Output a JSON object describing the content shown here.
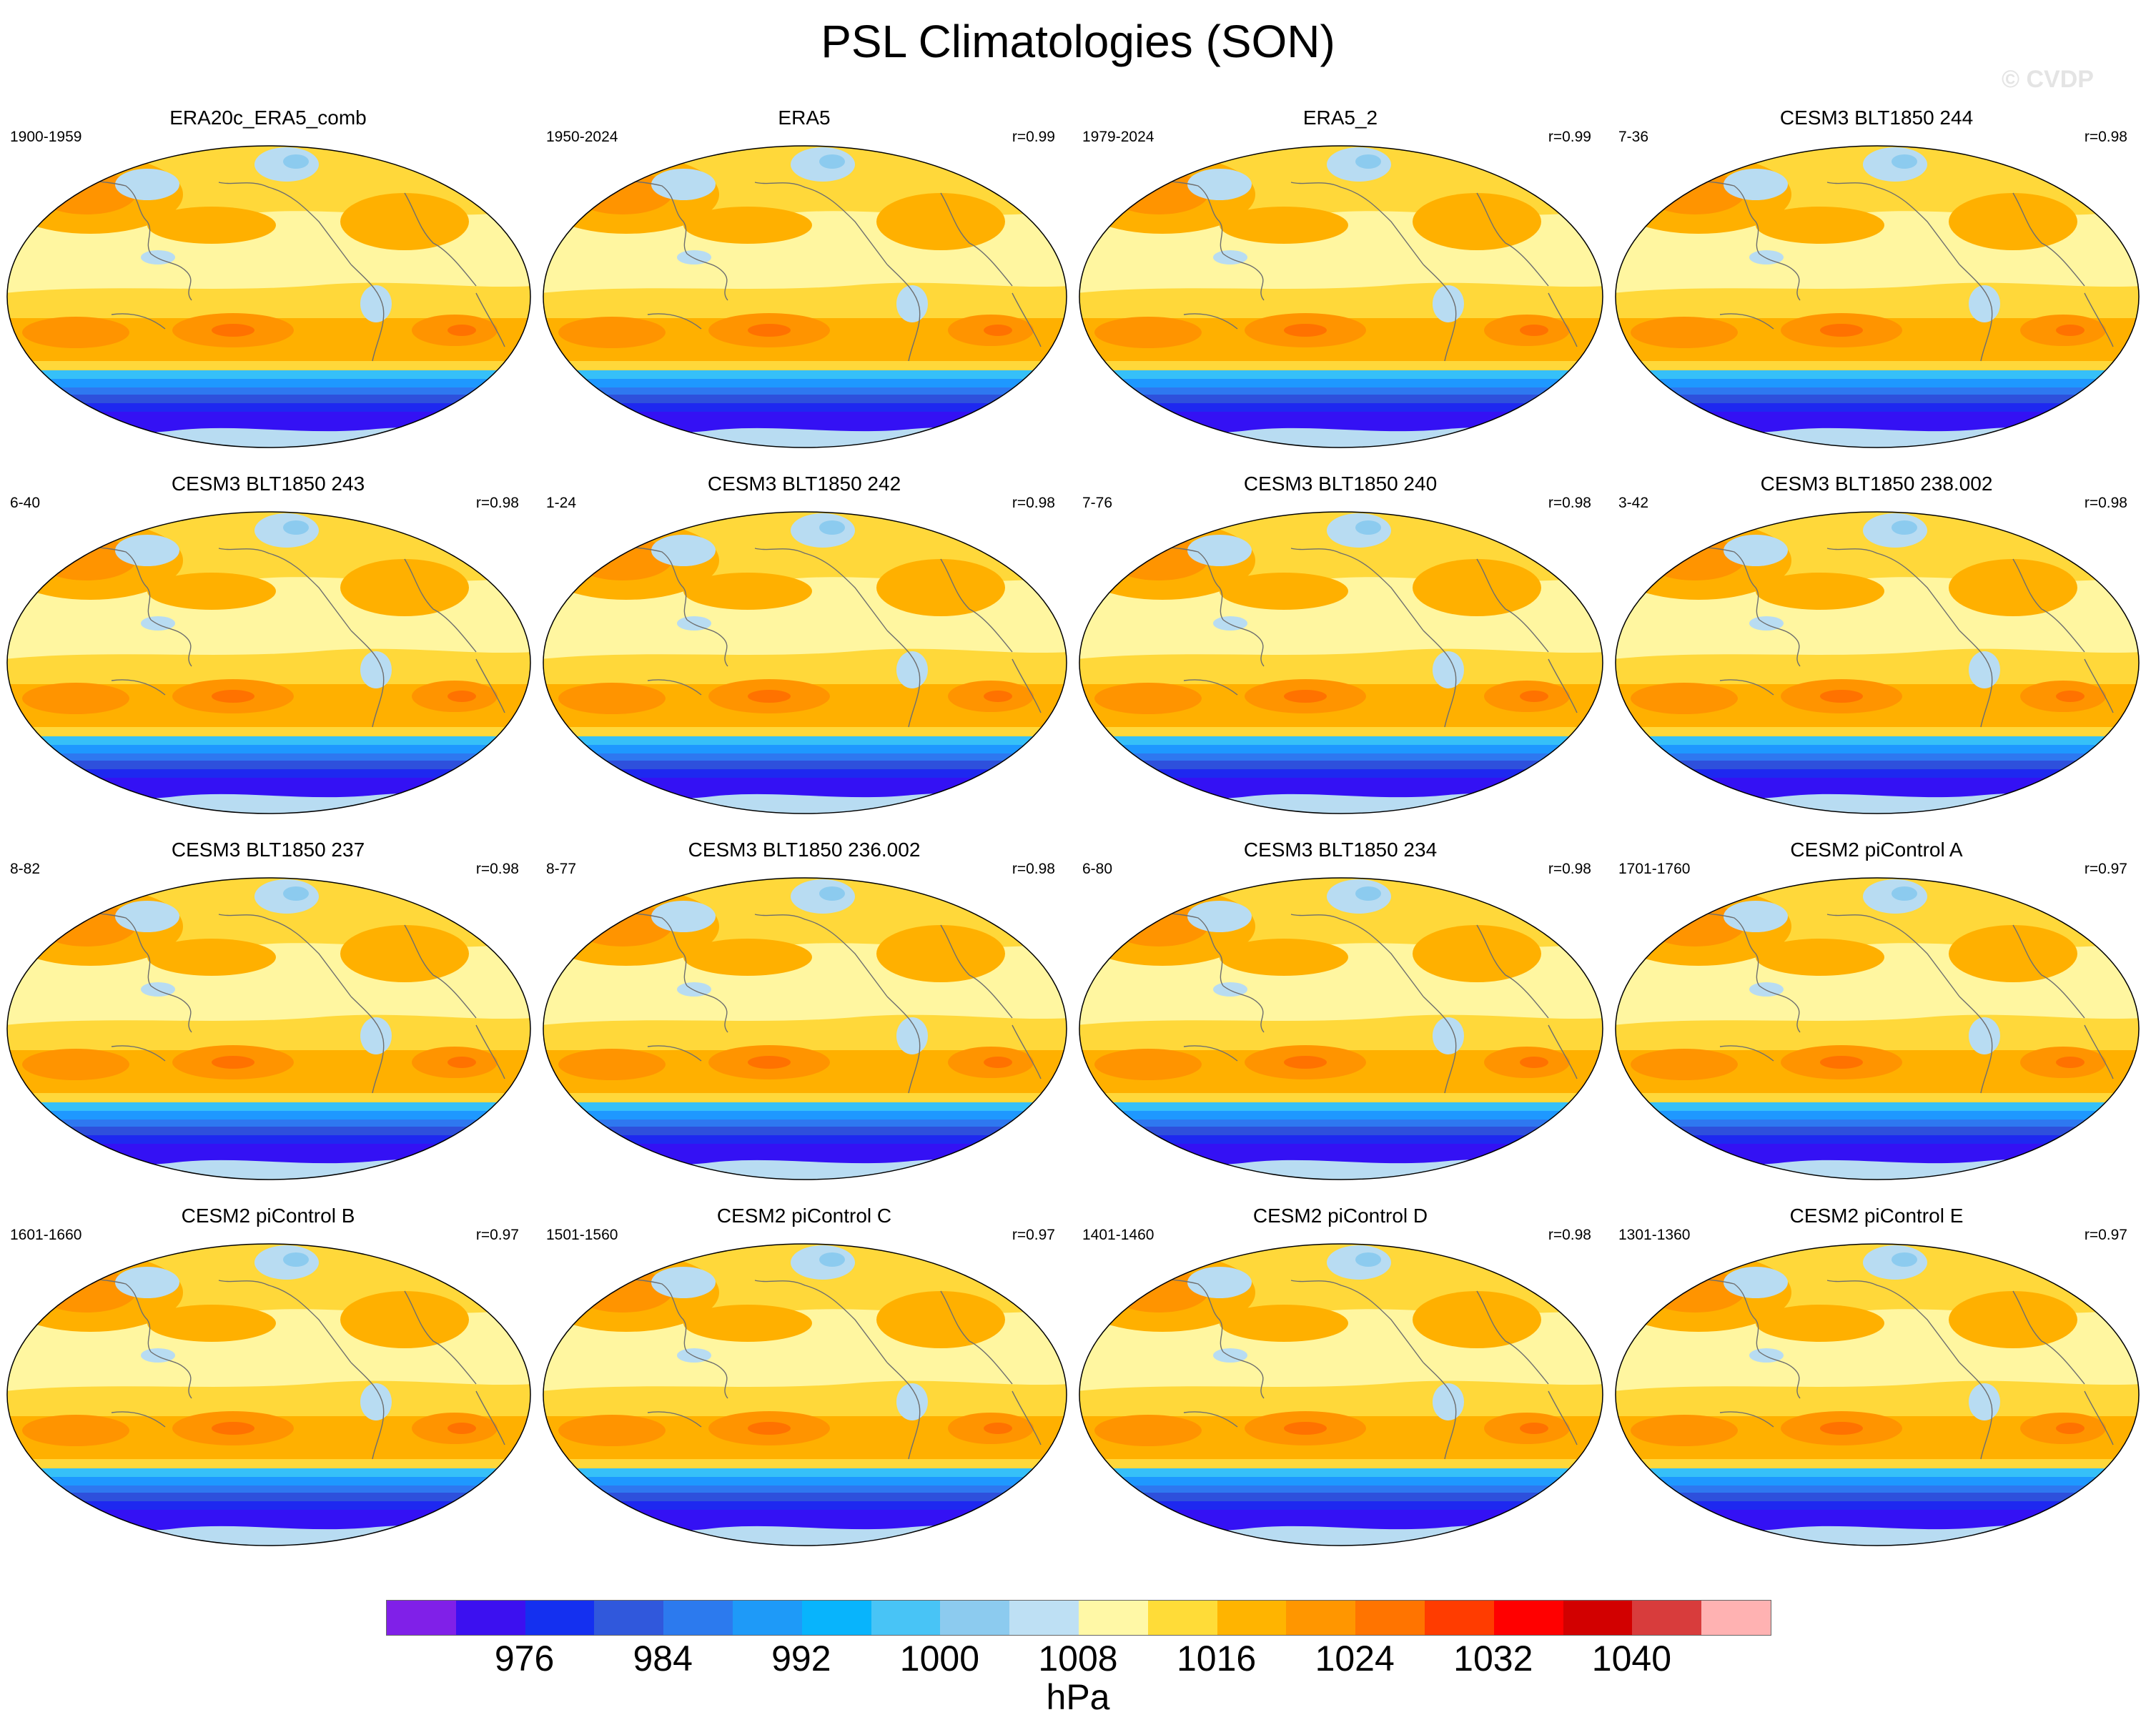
{
  "title": "PSL Climatologies (SON)",
  "watermark": "© CVDP",
  "colors": {
    "ocean_mid": "#fff6a0",
    "ocean_high": "#ffd83a",
    "ocean_higher": "#ffb000",
    "subtropical_high": "#ff9400",
    "max_high": "#ff7200",
    "low_light": "#b8dcf2",
    "low_mid": "#8ccbef",
    "southern_ocean": [
      "#36c0f8",
      "#1e98ff",
      "#2e78f0",
      "#2e50dc",
      "#1e28f0",
      "#3411f4"
    ],
    "coast": "#6e6e6e"
  },
  "panels": [
    {
      "title": "ERA20c_ERA5_comb",
      "years": "1900-1959",
      "corr": ""
    },
    {
      "title": "ERA5",
      "years": "1950-2024",
      "corr": "r=0.99"
    },
    {
      "title": "ERA5_2",
      "years": "1979-2024",
      "corr": "r=0.99"
    },
    {
      "title": "CESM3 BLT1850 244",
      "years": "7-36",
      "corr": "r=0.98"
    },
    {
      "title": "CESM3 BLT1850 243",
      "years": "6-40",
      "corr": "r=0.98"
    },
    {
      "title": "CESM3 BLT1850 242",
      "years": "1-24",
      "corr": "r=0.98"
    },
    {
      "title": "CESM3 BLT1850 240",
      "years": "7-76",
      "corr": "r=0.98"
    },
    {
      "title": "CESM3 BLT1850 238.002",
      "years": "3-42",
      "corr": "r=0.98"
    },
    {
      "title": "CESM3 BLT1850 237",
      "years": "8-82",
      "corr": "r=0.98"
    },
    {
      "title": "CESM3 BLT1850 236.002",
      "years": "8-77",
      "corr": "r=0.98"
    },
    {
      "title": "CESM3 BLT1850 234",
      "years": "6-80",
      "corr": "r=0.98"
    },
    {
      "title": "CESM2 piControl A",
      "years": "1701-1760",
      "corr": "r=0.97"
    },
    {
      "title": "CESM2 piControl B",
      "years": "1601-1660",
      "corr": "r=0.97"
    },
    {
      "title": "CESM2 piControl C",
      "years": "1501-1560",
      "corr": "r=0.97"
    },
    {
      "title": "CESM2 piControl D",
      "years": "1401-1460",
      "corr": "r=0.98"
    },
    {
      "title": "CESM2 piControl E",
      "years": "1301-1360",
      "corr": "r=0.97"
    }
  ],
  "colorbar": {
    "colors": [
      "#8020e8",
      "#3c10f0",
      "#1430f0",
      "#3058dc",
      "#2c7aee",
      "#1e9af8",
      "#08b4fc",
      "#48c4f6",
      "#8ccbef",
      "#bee0f4",
      "#fff8a6",
      "#ffdc38",
      "#ffb400",
      "#ff9600",
      "#ff7400",
      "#ff3c00",
      "#ff0000",
      "#d20000",
      "#d83c3c",
      "#ffb2b2"
    ],
    "labels": [
      "976",
      "984",
      "992",
      "1000",
      "1008",
      "1016",
      "1024",
      "1032",
      "1040"
    ],
    "units": "hPa"
  }
}
